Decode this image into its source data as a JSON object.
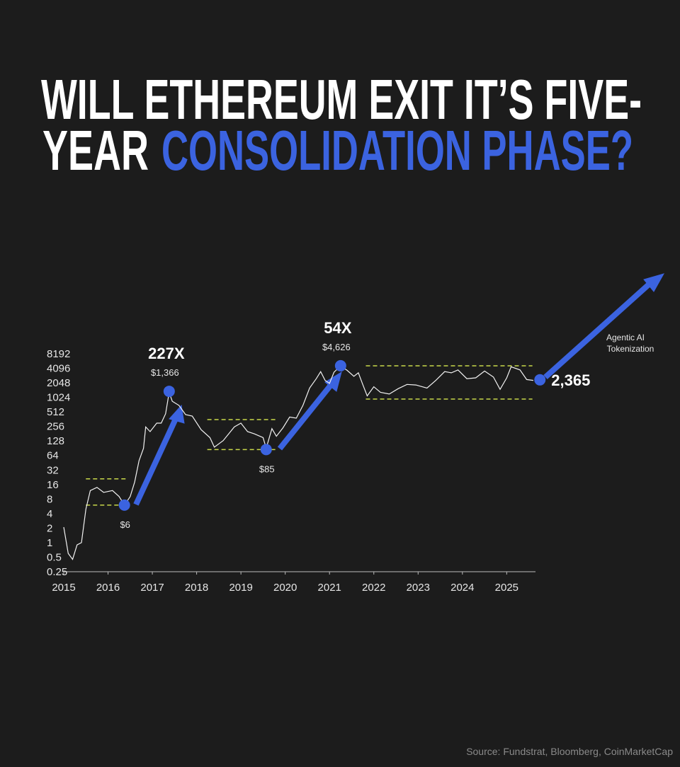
{
  "chart_data": {
    "type": "line",
    "title_parts": [
      "WILL ETHEREUM EXIT IT’S FIVE-",
      "YEAR",
      "CONSOLIDATION PHASE?"
    ],
    "log_scale": true,
    "color": "#f2f2f2",
    "x": [
      2015.0,
      2015.1,
      2015.2,
      2015.3,
      2015.4,
      2015.5,
      2015.6,
      2015.75,
      2015.9,
      2016.1,
      2016.25,
      2016.37,
      2016.5,
      2016.6,
      2016.7,
      2016.8,
      2016.85,
      2016.95,
      2017.1,
      2017.2,
      2017.3,
      2017.38,
      2017.45,
      2017.6,
      2017.75,
      2017.9,
      2018.1,
      2018.3,
      2018.4,
      2018.6,
      2018.85,
      2019.0,
      2019.15,
      2019.3,
      2019.5,
      2019.57,
      2019.7,
      2019.8,
      2019.95,
      2020.1,
      2020.25,
      2020.4,
      2020.55,
      2020.7,
      2020.8,
      2020.9,
      2021.0,
      2021.1,
      2021.25,
      2021.4,
      2021.55,
      2021.65,
      2021.75,
      2021.85,
      2022.0,
      2022.15,
      2022.35,
      2022.55,
      2022.75,
      2022.95,
      2023.2,
      2023.4,
      2023.6,
      2023.75,
      2023.9,
      2024.1,
      2024.3,
      2024.5,
      2024.7,
      2024.85,
      2025.0,
      2025.1,
      2025.3,
      2025.45,
      2025.6
    ],
    "values": [
      2.1,
      0.6,
      0.45,
      0.9,
      1.0,
      5,
      12,
      14,
      11,
      12,
      9,
      6,
      9,
      18,
      50,
      90,
      250,
      200,
      300,
      300,
      470,
      1300,
      850,
      700,
      450,
      420,
      220,
      150,
      95,
      130,
      250,
      300,
      200,
      180,
      150,
      90,
      230,
      160,
      240,
      400,
      380,
      700,
      1600,
      2500,
      3500,
      2300,
      2000,
      3400,
      4600,
      3700,
      2800,
      3300,
      1900,
      1100,
      1700,
      1300,
      1200,
      1550,
      1900,
      1850,
      1600,
      2300,
      3500,
      3300,
      3800,
      2500,
      2600,
      3600,
      2700,
      1500,
      2600,
      4400,
      3800,
      2400,
      2300
    ],
    "xlim": [
      2015,
      2025.65
    ],
    "ylim": [
      0.25,
      8192
    ],
    "xticks": [
      2015,
      2016,
      2017,
      2018,
      2019,
      2020,
      2021,
      2022,
      2023,
      2024,
      2025
    ],
    "yticks": [
      0.25,
      0.5,
      1,
      2,
      4,
      8,
      16,
      32,
      64,
      128,
      256,
      512,
      1024,
      2048,
      4096,
      8192
    ],
    "range_color": "#c8d84a",
    "ranges": [
      {
        "x": [
          2015.5,
          2016.44
        ],
        "y": [
          6,
          21
        ]
      },
      {
        "x": [
          2018.24,
          2019.82
        ],
        "y": [
          85,
          355
        ]
      },
      {
        "x": [
          2021.82,
          2025.58
        ],
        "y": [
          943,
          4610
        ]
      }
    ],
    "marker_color": "#3b63e0",
    "markers": [
      {
        "x": 2016.37,
        "value": 6,
        "label": "$6"
      },
      {
        "x": 2017.38,
        "value": 1366,
        "label": "$1,366",
        "multiple": "227X"
      },
      {
        "x": 2019.57,
        "value": 85,
        "label": "$85"
      },
      {
        "x": 2021.25,
        "value": 4626,
        "label": "$4,626",
        "multiple": "54X"
      },
      {
        "x": 2025.75,
        "value": 2365,
        "label": "2,365"
      }
    ],
    "note": [
      "Agentic AI",
      "Tokenization"
    ],
    "source": "Source: Fundstrat, Bloomberg, CoinMarketCap"
  }
}
